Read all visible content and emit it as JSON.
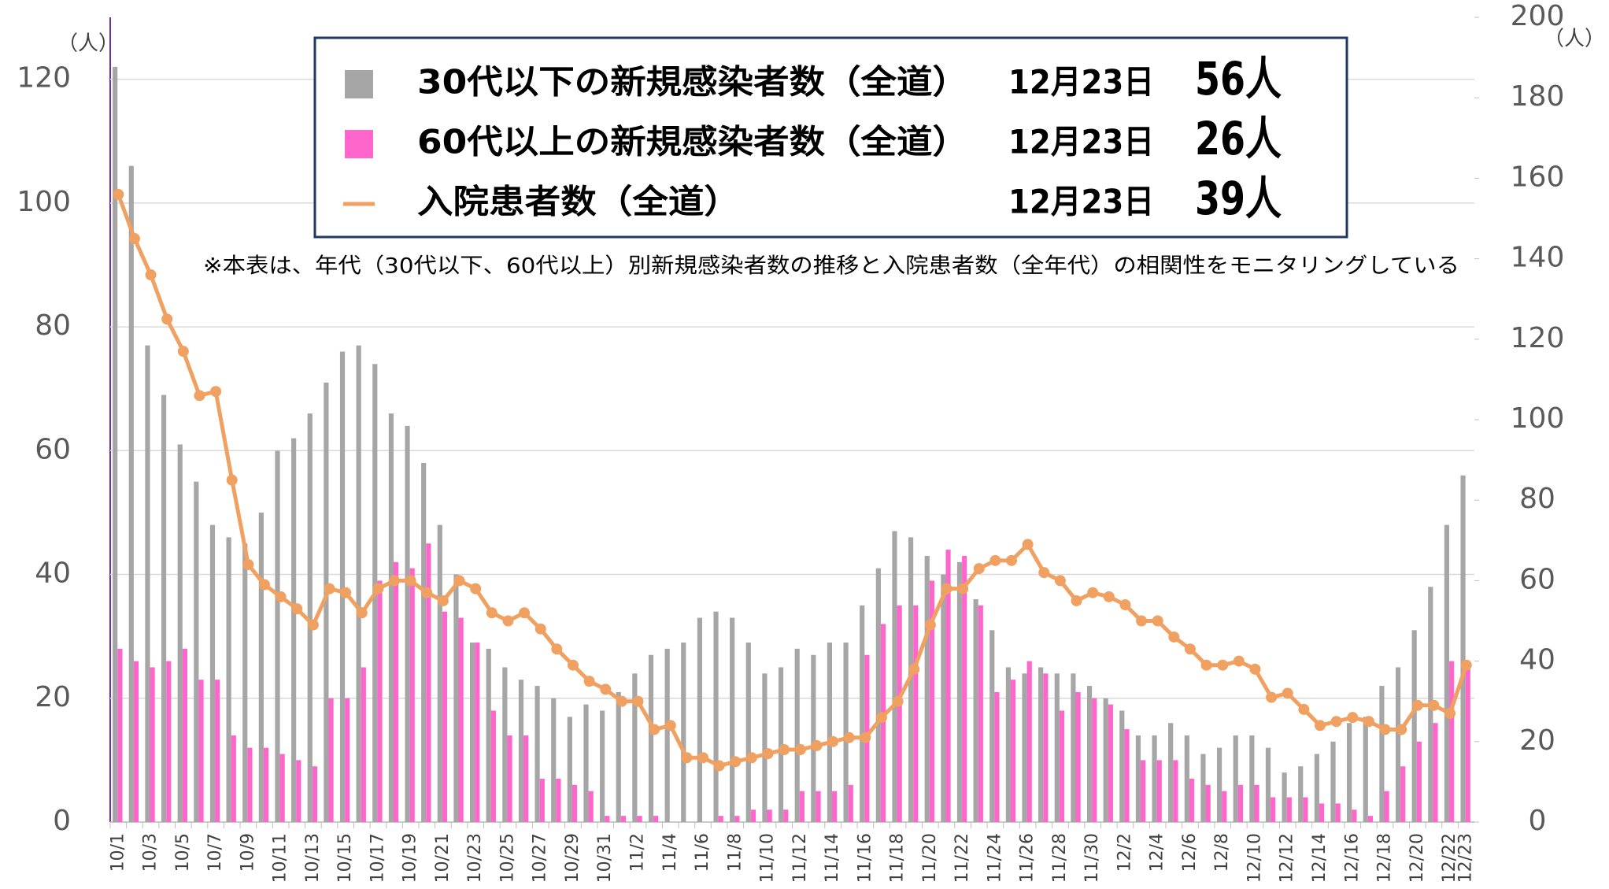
{
  "chart_data": {
    "type": "bar",
    "y_unit_label": "（人）",
    "y2_unit_label": "（人）",
    "note": "※本表は、年代（30代以下、60代以上）別新規感染者数の推移と入院患者数（全年代）の相関性をモニタリングしている",
    "categories": [
      "10/1",
      null,
      "10/3",
      null,
      "10/5",
      null,
      "10/7",
      null,
      "10/9",
      null,
      "10/11",
      null,
      "10/13",
      null,
      "10/15",
      null,
      "10/17",
      null,
      "10/19",
      null,
      "10/21",
      null,
      "10/23",
      null,
      "10/25",
      null,
      "10/27",
      null,
      "10/29",
      null,
      "10/31",
      null,
      "11/2",
      null,
      "11/4",
      null,
      "11/6",
      null,
      "11/8",
      null,
      "11/10",
      null,
      "11/12",
      null,
      "11/14",
      null,
      "11/16",
      null,
      "11/18",
      null,
      "11/20",
      null,
      "11/22",
      null,
      "11/24",
      null,
      "11/26",
      null,
      "11/28",
      null,
      "11/30",
      null,
      "12/2",
      null,
      "12/4",
      null,
      "12/6",
      null,
      "12/8",
      null,
      "12/10",
      null,
      "12/12",
      null,
      "12/14",
      null,
      "12/16",
      null,
      "12/18",
      null,
      "12/20",
      null,
      "12/22",
      "12/23"
    ],
    "series": [
      {
        "name": "30代以下の新規感染者数（全道）",
        "type": "bar",
        "color": "#a6a6a6",
        "legend_date": "12月23日",
        "legend_value": "56人",
        "values": [
          122,
          106,
          77,
          69,
          61,
          55,
          48,
          46,
          45,
          50,
          60,
          62,
          66,
          71,
          76,
          77,
          74,
          66,
          64,
          58,
          48,
          40,
          29,
          28,
          25,
          23,
          22,
          20,
          17,
          19,
          18,
          21,
          24,
          27,
          28,
          29,
          33,
          34,
          33,
          29,
          24,
          25,
          28,
          27,
          29,
          29,
          35,
          41,
          47,
          46,
          43,
          40,
          42,
          36,
          31,
          25,
          24,
          25,
          24,
          24,
          22,
          20,
          18,
          14,
          14,
          16,
          14,
          11,
          12,
          14,
          14,
          12,
          8,
          9,
          11,
          13,
          16,
          17,
          22,
          25,
          31,
          38,
          48,
          56
        ]
      },
      {
        "name": "60代以上の新規感染者数（全道）",
        "type": "bar",
        "color": "#ff66cc",
        "legend_date": "12月23日",
        "legend_value": "26人",
        "values": [
          28,
          26,
          25,
          26,
          28,
          23,
          23,
          14,
          12,
          12,
          11,
          10,
          9,
          20,
          20,
          25,
          39,
          42,
          41,
          45,
          34,
          33,
          29,
          18,
          14,
          14,
          7,
          7,
          6,
          5,
          1,
          1,
          1,
          1,
          0,
          0,
          0,
          1,
          1,
          2,
          2,
          2,
          5,
          5,
          5,
          6,
          27,
          32,
          35,
          35,
          39,
          44,
          43,
          35,
          21,
          23,
          26,
          24,
          18,
          21,
          20,
          19,
          15,
          10,
          10,
          10,
          7,
          6,
          5,
          6,
          6,
          4,
          4,
          4,
          3,
          3,
          2,
          1,
          5,
          9,
          13,
          16,
          26,
          26
        ]
      },
      {
        "name": "入院患者数（全道）",
        "type": "line",
        "axis": "y2",
        "color": "#f0a060",
        "legend_date": "12月23日",
        "legend_value": "39人",
        "values": [
          156,
          145,
          136,
          125,
          117,
          106,
          107,
          85,
          64,
          59,
          56,
          53,
          49,
          58,
          57,
          52,
          58,
          60,
          60,
          57,
          55,
          60,
          58,
          52,
          50,
          52,
          48,
          43,
          39,
          35,
          33,
          30,
          30,
          23,
          24,
          16,
          16,
          14,
          15,
          16,
          17,
          18,
          18,
          19,
          20,
          21,
          21,
          26,
          30,
          38,
          49,
          58,
          58,
          63,
          65,
          65,
          69,
          62,
          60,
          55,
          57,
          56,
          54,
          50,
          50,
          46,
          43,
          39,
          39,
          40,
          38,
          31,
          32,
          28,
          24,
          25,
          26,
          25,
          23,
          23,
          29,
          29,
          27,
          39
        ]
      }
    ],
    "ylim": [
      0,
      130
    ],
    "yticks": [
      0,
      20,
      40,
      60,
      80,
      100,
      120
    ],
    "y2lim": [
      0,
      200
    ],
    "y2ticks": [
      0,
      20,
      40,
      60,
      80,
      100,
      120,
      140,
      160,
      180,
      200
    ],
    "grid": true
  }
}
